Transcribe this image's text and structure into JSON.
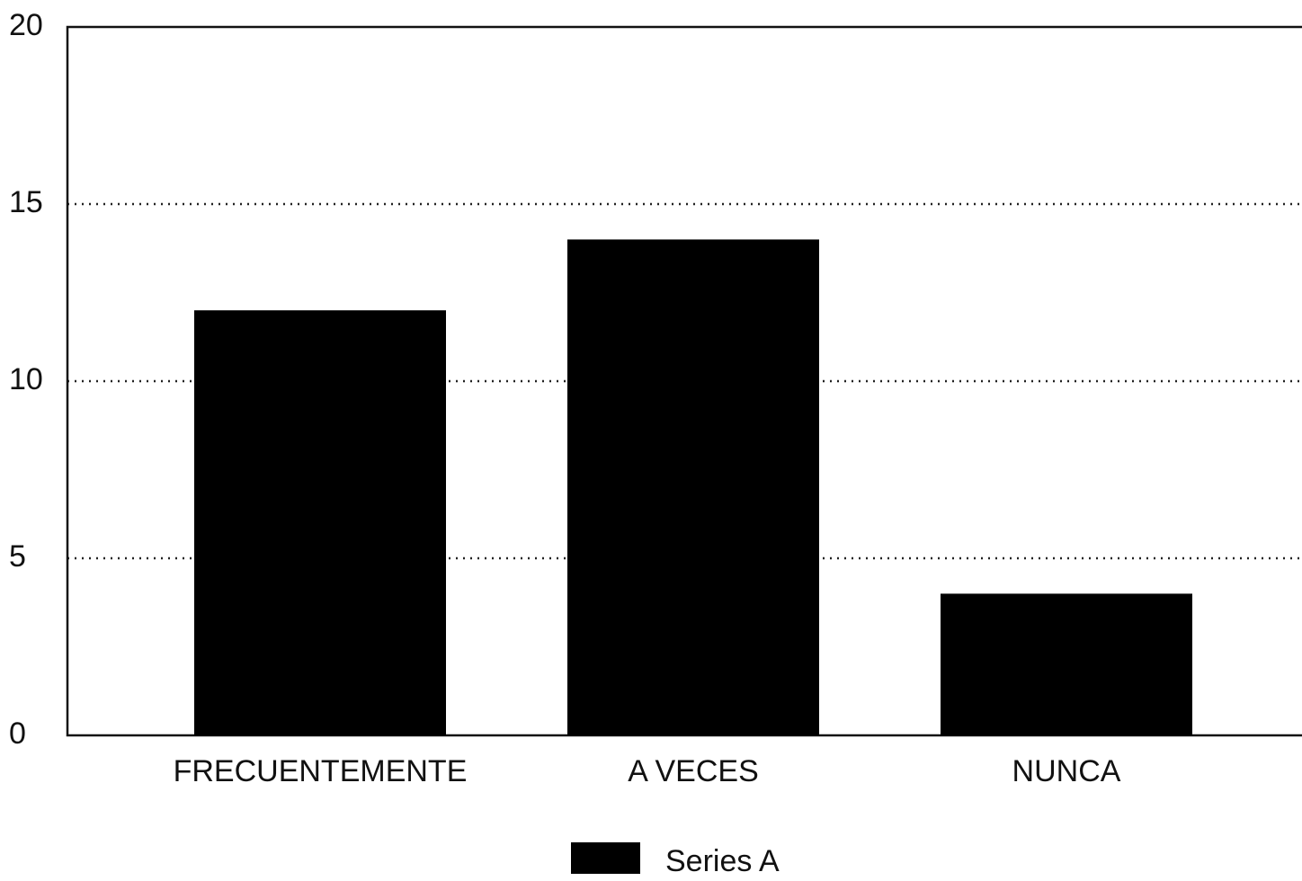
{
  "chart_data": {
    "type": "bar",
    "categories": [
      "FRECUENTEMENTE",
      "A VECES",
      "NUNCA"
    ],
    "series": [
      {
        "name": "Series A",
        "color": "#000000",
        "values": [
          12,
          14,
          4
        ]
      }
    ],
    "ylim": [
      0,
      20
    ],
    "yticks": [
      0,
      5,
      10,
      15,
      20
    ],
    "grid": true
  }
}
